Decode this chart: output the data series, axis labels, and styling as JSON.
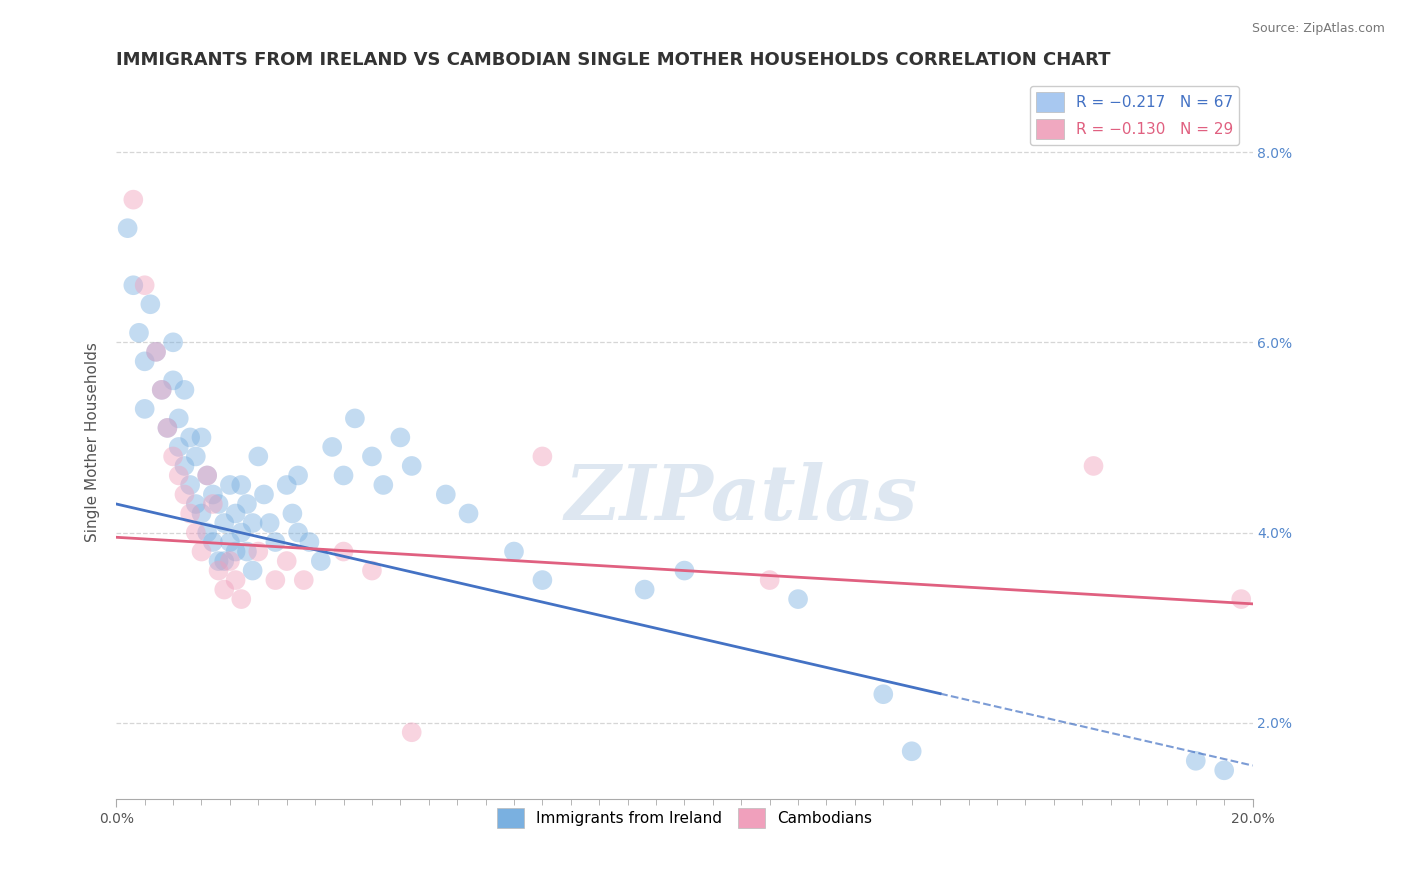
{
  "title": "IMMIGRANTS FROM IRELAND VS CAMBODIAN SINGLE MOTHER HOUSEHOLDS CORRELATION CHART",
  "source": "Source: ZipAtlas.com",
  "ylabel": "Single Mother Households",
  "xmin": 0.0,
  "xmax": 20.0,
  "ymin": 1.2,
  "ymax": 8.7,
  "yticks": [
    2.0,
    4.0,
    6.0,
    8.0
  ],
  "watermark": "ZIPatlas",
  "legend_entries": [
    {
      "label": "R = −0.217   N = 67",
      "color": "#a8c8f0"
    },
    {
      "label": "R = −0.130   N = 29",
      "color": "#f0a8c0"
    }
  ],
  "ireland_color": "#7ab0e0",
  "cambodian_color": "#f0a0bc",
  "ireland_scatter": [
    [
      0.2,
      7.2
    ],
    [
      0.3,
      6.6
    ],
    [
      0.4,
      6.1
    ],
    [
      0.5,
      5.8
    ],
    [
      0.5,
      5.3
    ],
    [
      0.6,
      6.4
    ],
    [
      0.7,
      5.9
    ],
    [
      0.8,
      5.5
    ],
    [
      0.9,
      5.1
    ],
    [
      1.0,
      6.0
    ],
    [
      1.0,
      5.6
    ],
    [
      1.1,
      5.2
    ],
    [
      1.1,
      4.9
    ],
    [
      1.2,
      5.5
    ],
    [
      1.2,
      4.7
    ],
    [
      1.3,
      5.0
    ],
    [
      1.3,
      4.5
    ],
    [
      1.4,
      4.8
    ],
    [
      1.4,
      4.3
    ],
    [
      1.5,
      5.0
    ],
    [
      1.5,
      4.2
    ],
    [
      1.6,
      4.6
    ],
    [
      1.6,
      4.0
    ],
    [
      1.7,
      4.4
    ],
    [
      1.7,
      3.9
    ],
    [
      1.8,
      4.3
    ],
    [
      1.8,
      3.7
    ],
    [
      1.9,
      4.1
    ],
    [
      1.9,
      3.7
    ],
    [
      2.0,
      4.5
    ],
    [
      2.0,
      3.9
    ],
    [
      2.1,
      4.2
    ],
    [
      2.1,
      3.8
    ],
    [
      2.2,
      4.5
    ],
    [
      2.2,
      4.0
    ],
    [
      2.3,
      4.3
    ],
    [
      2.3,
      3.8
    ],
    [
      2.4,
      4.1
    ],
    [
      2.4,
      3.6
    ],
    [
      2.5,
      4.8
    ],
    [
      2.6,
      4.4
    ],
    [
      2.7,
      4.1
    ],
    [
      2.8,
      3.9
    ],
    [
      3.0,
      4.5
    ],
    [
      3.1,
      4.2
    ],
    [
      3.2,
      4.6
    ],
    [
      3.2,
      4.0
    ],
    [
      3.4,
      3.9
    ],
    [
      3.6,
      3.7
    ],
    [
      3.8,
      4.9
    ],
    [
      4.0,
      4.6
    ],
    [
      4.2,
      5.2
    ],
    [
      4.5,
      4.8
    ],
    [
      4.7,
      4.5
    ],
    [
      5.0,
      5.0
    ],
    [
      5.2,
      4.7
    ],
    [
      5.8,
      4.4
    ],
    [
      6.2,
      4.2
    ],
    [
      7.0,
      3.8
    ],
    [
      7.5,
      3.5
    ],
    [
      9.3,
      3.4
    ],
    [
      10.0,
      3.6
    ],
    [
      12.0,
      3.3
    ],
    [
      13.5,
      2.3
    ],
    [
      14.0,
      1.7
    ],
    [
      19.0,
      1.6
    ],
    [
      19.5,
      1.5
    ]
  ],
  "cambodian_scatter": [
    [
      0.3,
      7.5
    ],
    [
      0.5,
      6.6
    ],
    [
      0.7,
      5.9
    ],
    [
      0.8,
      5.5
    ],
    [
      0.9,
      5.1
    ],
    [
      1.0,
      4.8
    ],
    [
      1.1,
      4.6
    ],
    [
      1.2,
      4.4
    ],
    [
      1.3,
      4.2
    ],
    [
      1.4,
      4.0
    ],
    [
      1.5,
      3.8
    ],
    [
      1.6,
      4.6
    ],
    [
      1.7,
      4.3
    ],
    [
      1.8,
      3.6
    ],
    [
      1.9,
      3.4
    ],
    [
      2.0,
      3.7
    ],
    [
      2.1,
      3.5
    ],
    [
      2.2,
      3.3
    ],
    [
      2.5,
      3.8
    ],
    [
      2.8,
      3.5
    ],
    [
      3.0,
      3.7
    ],
    [
      3.3,
      3.5
    ],
    [
      4.0,
      3.8
    ],
    [
      4.5,
      3.6
    ],
    [
      5.2,
      1.9
    ],
    [
      7.5,
      4.8
    ],
    [
      11.5,
      3.5
    ],
    [
      17.2,
      4.7
    ],
    [
      19.8,
      3.3
    ]
  ],
  "ireland_line": {
    "x0": 0.0,
    "y0": 4.3,
    "x1": 20.0,
    "y1": 1.55
  },
  "ireland_solid_end": 14.5,
  "cambodian_line": {
    "x0": 0.0,
    "y0": 3.95,
    "x1": 20.0,
    "y1": 3.25
  },
  "background_color": "#ffffff",
  "grid_color": "#cccccc",
  "title_color": "#333333",
  "title_fontsize": 13,
  "axis_label_fontsize": 11,
  "tick_fontsize": 10,
  "watermark_color": "#c8d8e8",
  "watermark_fontsize": 55,
  "ireland_line_color": "#4472c4",
  "cambodian_line_color": "#e06080"
}
